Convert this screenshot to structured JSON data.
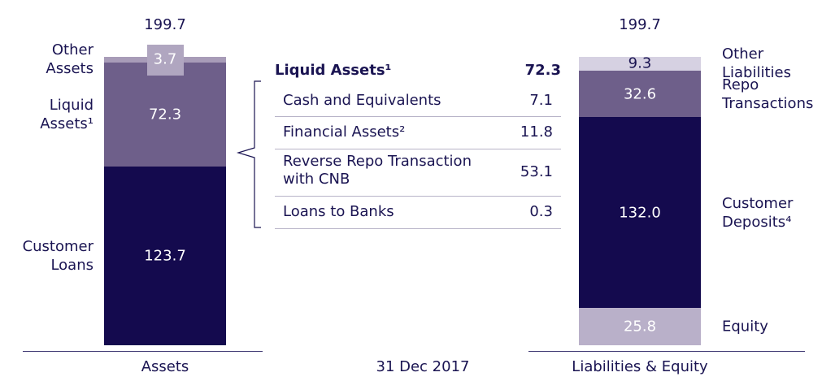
{
  "chart_data": {
    "type": "stacked_bar",
    "x_label": "31 Dec 2017",
    "bars": [
      {
        "name": "Assets",
        "total": 199.7,
        "segments": [
          {
            "name": "Customer Loans",
            "value": 123.7,
            "color": "#140a4e",
            "label_color": "#ffffff"
          },
          {
            "name": "Liquid Assets¹",
            "value": 72.3,
            "color": "#6e5f8a",
            "label_color": "#ffffff"
          },
          {
            "name": "Other Assets",
            "value": 3.7,
            "color": "#a89cb8",
            "label_color": "#ffffff"
          }
        ]
      },
      {
        "name": "Liabilities & Equity",
        "total": 199.7,
        "segments": [
          {
            "name": "Equity",
            "value": 25.8,
            "color": "#b9b0c9",
            "label_color": "#ffffff"
          },
          {
            "name": "Customer Deposits⁴",
            "value": 132,
            "value_label": "132.0",
            "color": "#140a4e",
            "label_color": "#ffffff"
          },
          {
            "name": "Repo Transactions",
            "value": 32.6,
            "color": "#6e5f8a",
            "label_color": "#ffffff"
          },
          {
            "name": "Other Liabilities",
            "value": 9.3,
            "color": "#d6d1e2",
            "label_color": "#1a1452"
          }
        ]
      }
    ]
  },
  "table": {
    "title": "Liquid Assets¹",
    "total": 72.3,
    "rows": [
      {
        "name": "Cash and Equivalents",
        "value": 7.1
      },
      {
        "name": "Financial Assets²",
        "value": 11.8
      },
      {
        "name": "Reverse Repo Transaction with CNB",
        "value": 53.1
      },
      {
        "name": "Loans to Banks",
        "value": 0.3
      }
    ]
  }
}
